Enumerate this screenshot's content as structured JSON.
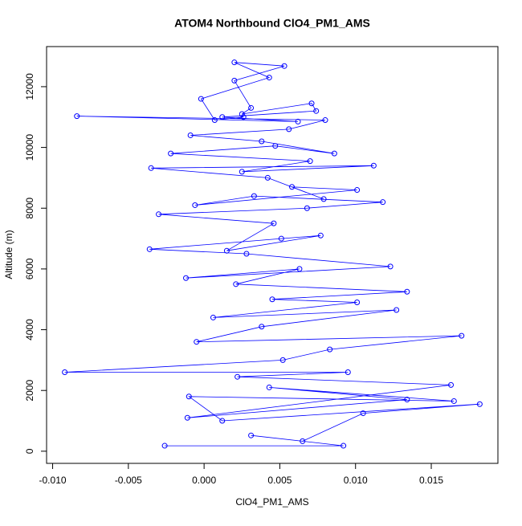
{
  "chart_data": {
    "type": "scatter",
    "lines": true,
    "title": "ATOM4 Northbound ClO4_PM1_AMS",
    "x_label": "ClO4_PM1_AMS",
    "y_label": "Altitude (m)",
    "color": "#0000ff",
    "xlim": [
      -0.0104,
      0.0194
    ],
    "ylim": [
      -400,
      13320
    ],
    "xticks": [
      {
        "value": -0.01,
        "label": "-0.010"
      },
      {
        "value": -0.005,
        "label": "-0.005"
      },
      {
        "value": 0,
        "label": "0.000"
      },
      {
        "value": 0.005,
        "label": "0.005"
      },
      {
        "value": 0.01,
        "label": "0.010"
      },
      {
        "value": 0.015,
        "label": "0.015"
      }
    ],
    "yticks": [
      0,
      2000,
      4000,
      6000,
      8000,
      10000,
      12000
    ],
    "x": [
      -0.0026,
      0.0092,
      0.0031,
      0.0065,
      0.0105,
      0.0182,
      0.0012,
      -0.001,
      0.0165,
      0.0043,
      0.0134,
      -0.0011,
      0.0163,
      0.0022,
      0.0095,
      -0.0092,
      0.0052,
      0.0083,
      0.017,
      -0.0005,
      0.0038,
      0.0127,
      0.0006,
      0.0101,
      0.0045,
      0.0134,
      0.0021,
      0.0063,
      -0.0012,
      0.0123,
      0.0028,
      -0.0036,
      0.0051,
      0.0077,
      0.0015,
      0.0046,
      -0.003,
      0.0068,
      0.0118,
      0.0033,
      -0.0006,
      0.0101,
      0.0058,
      0.0079,
      0.0042,
      -0.0035,
      0.0112,
      0.0025,
      0.007,
      -0.0022,
      0.0047,
      0.0086,
      0.0038,
      -0.0009,
      0.0056,
      0.008,
      -0.0084,
      0.0062,
      0.0012,
      0.0074,
      0.0071,
      0.0025,
      0.0031,
      0.002,
      0.0053,
      0.002,
      0.0043,
      -0.0002,
      0.0007,
      0.0026
    ],
    "y": [
      180,
      180,
      520,
      330,
      1250,
      1550,
      1000,
      1800,
      1650,
      2100,
      1700,
      1100,
      2180,
      2450,
      2600,
      2600,
      3000,
      3350,
      3800,
      3600,
      4100,
      4650,
      4400,
      4900,
      5000,
      5250,
      5500,
      6000,
      5700,
      6080,
      6500,
      6650,
      7000,
      7100,
      6600,
      7500,
      7800,
      8000,
      8200,
      8400,
      8100,
      8600,
      8700,
      8300,
      9000,
      9320,
      9400,
      9200,
      9550,
      9800,
      10050,
      9800,
      10200,
      10400,
      10600,
      10900,
      11030,
      10850,
      11000,
      11200,
      11450,
      11100,
      11300,
      12200,
      12680,
      12800,
      12300,
      11600,
      10900,
      11000
    ]
  }
}
